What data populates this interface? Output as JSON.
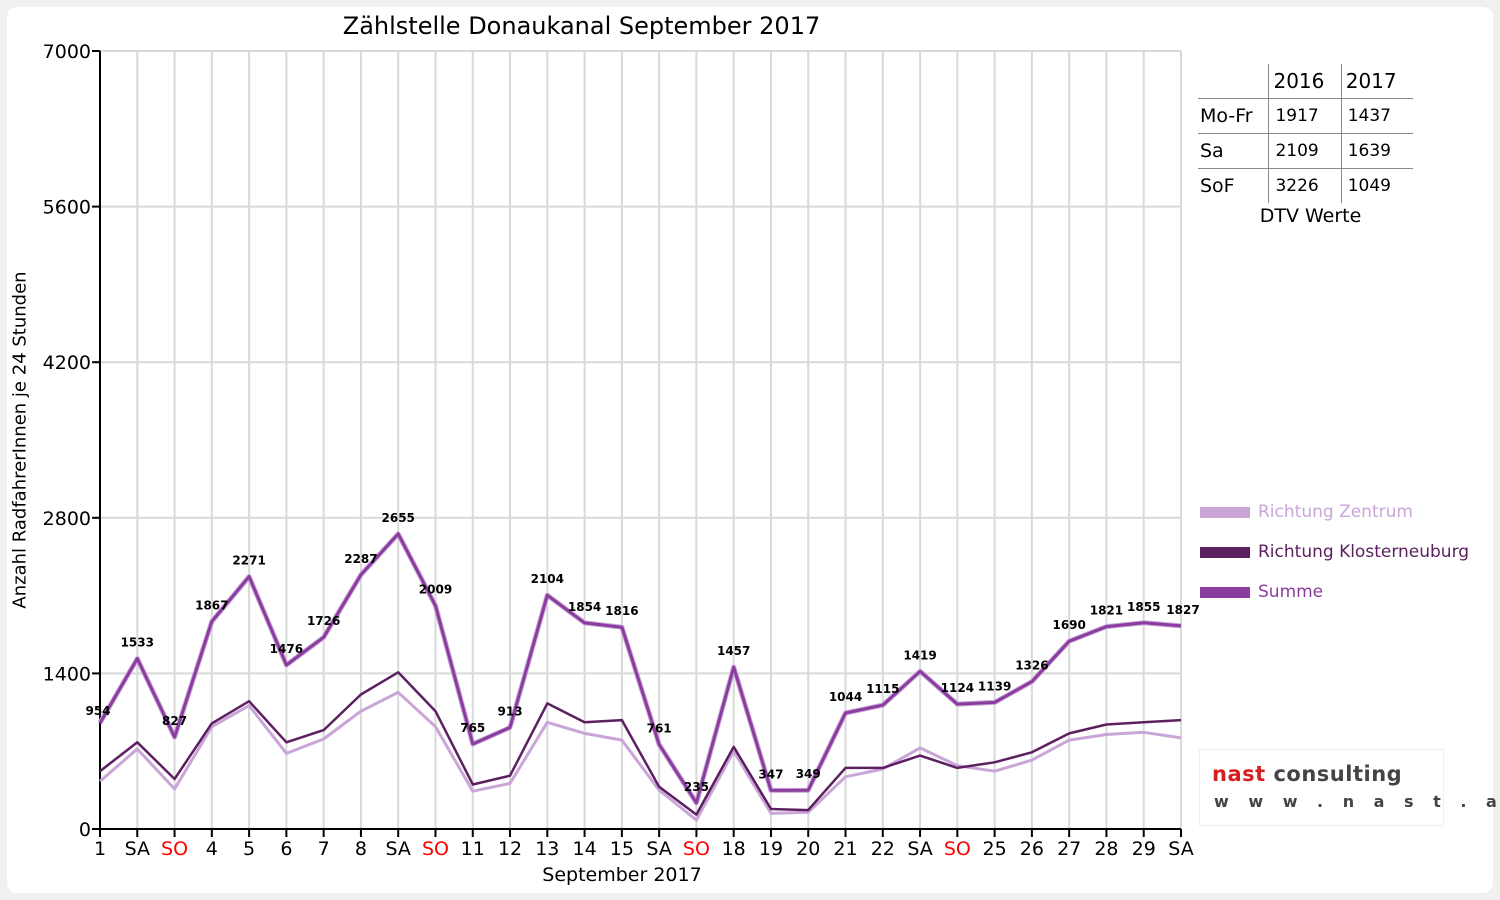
{
  "chart_data": {
    "type": "line",
    "title": "Zählstelle Donaukanal September 2017",
    "xlabel": "September 2017",
    "ylabel": "Anzahl RadfahrerInnen je 24 Stunden",
    "ylim": [
      0,
      7000
    ],
    "yticks": [
      "0",
      "1400",
      "2800",
      "4200",
      "5600",
      "7000"
    ],
    "grid": true,
    "legend_placement": "right",
    "categories": [
      "1",
      "SA",
      "SO",
      "4",
      "5",
      "6",
      "7",
      "8",
      "SA",
      "SO",
      "11",
      "12",
      "13",
      "14",
      "15",
      "SA",
      "SO",
      "18",
      "19",
      "20",
      "21",
      "22",
      "SA",
      "SO",
      "25",
      "26",
      "27",
      "28",
      "29",
      "SA"
    ],
    "red_categories": [
      2,
      9,
      16,
      23
    ],
    "series": [
      {
        "name": "Richtung Zentrum",
        "color": "#c9a5d8",
        "values": [
          430,
          720,
          360,
          920,
          1110,
          680,
          810,
          1060,
          1230,
          920,
          340,
          410,
          960,
          860,
          800,
          350,
          80,
          700,
          140,
          150,
          470,
          540,
          730,
          570,
          520,
          620,
          800,
          850,
          870,
          820
        ]
      },
      {
        "name": "Richtung Klosterneuburg",
        "color": "#5c2060",
        "values": [
          520,
          780,
          450,
          950,
          1150,
          780,
          890,
          1210,
          1410,
          1060,
          400,
          480,
          1130,
          960,
          980,
          380,
          130,
          740,
          180,
          170,
          550,
          550,
          660,
          550,
          600,
          690,
          860,
          940,
          960,
          980
        ]
      },
      {
        "name": "Summe",
        "color": "#8a3d9e",
        "values": [
          954,
          1533,
          827,
          1867,
          2271,
          1476,
          1726,
          2287,
          2655,
          2009,
          765,
          913,
          2104,
          1854,
          1816,
          761,
          235,
          1457,
          347,
          349,
          1044,
          1115,
          1419,
          1124,
          1139,
          1326,
          1690,
          1821,
          1855,
          1827
        ]
      }
    ]
  },
  "dtv_table": {
    "columns": [
      "2016",
      "2017"
    ],
    "rows": [
      {
        "label": "Mo-Fr",
        "v2016": "1917",
        "v2017": "1437"
      },
      {
        "label": "Sa",
        "v2016": "2109",
        "v2017": "1639"
      },
      {
        "label": "SoF",
        "v2016": "3226",
        "v2017": "1049"
      }
    ],
    "caption": "DTV Werte"
  },
  "logo": {
    "word1": "nast",
    "word2": "consulting",
    "url": "w w w . n a s t . a t"
  },
  "colors": {
    "weekday_label": "#000000",
    "holiday_label": "#ff0000",
    "grid": "#d9d9d9"
  }
}
